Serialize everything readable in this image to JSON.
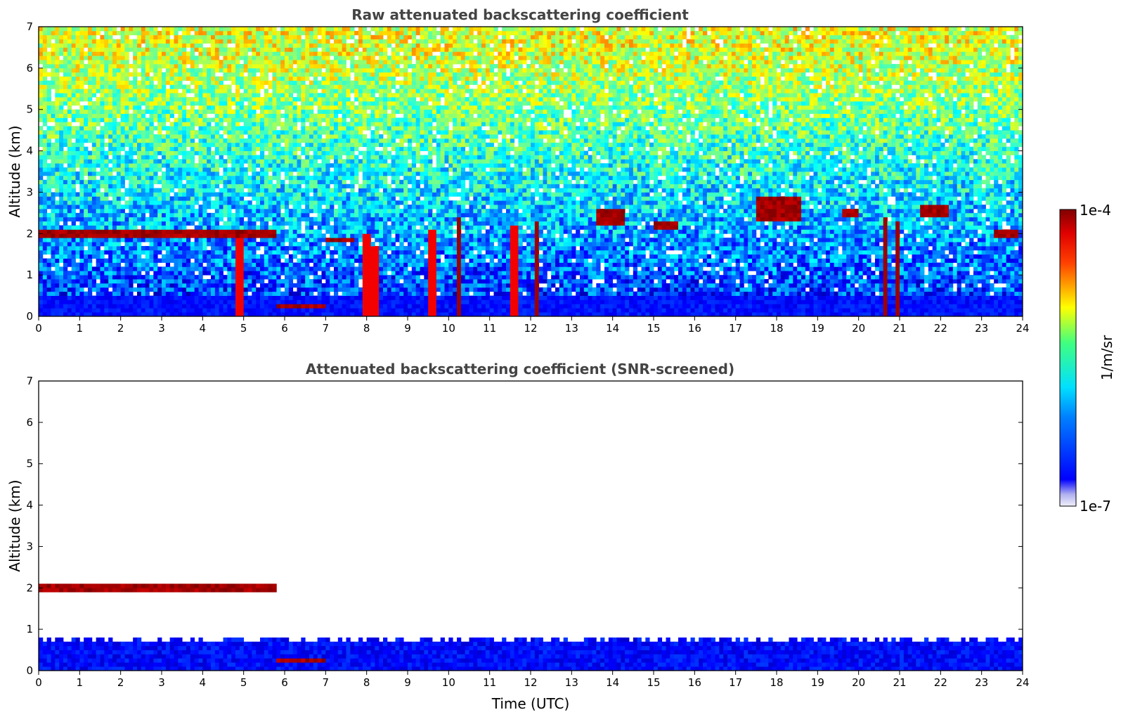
{
  "chart_data": [
    {
      "type": "heatmap",
      "title": "Raw attenuated backscattering coefficient",
      "xlabel": "",
      "ylabel": "Altitude (km)",
      "xlim": [
        0,
        24
      ],
      "ylim": [
        0,
        7
      ],
      "x_ticks": [
        "0",
        "1",
        "2",
        "3",
        "4",
        "5",
        "6",
        "7",
        "8",
        "9",
        "10",
        "11",
        "12",
        "13",
        "14",
        "15",
        "16",
        "17",
        "18",
        "19",
        "20",
        "21",
        "22",
        "23",
        "24"
      ],
      "y_ticks": [
        "0",
        "1",
        "2",
        "3",
        "4",
        "5",
        "6",
        "7"
      ],
      "screened": false,
      "features": [
        {
          "kind": "cloud-layer",
          "t_start": 0.0,
          "t_end": 5.8,
          "altitude_km": [
            1.93,
            2.1
          ]
        },
        {
          "kind": "cloud-layer",
          "t_start": 5.8,
          "t_end": 7.0,
          "altitude_km": [
            0.2,
            0.32
          ]
        },
        {
          "kind": "cloud-layer",
          "t_start": 7.0,
          "t_end": 7.7,
          "altitude_km": [
            1.8,
            1.95
          ]
        },
        {
          "kind": "convective-column",
          "t_center": 4.9,
          "altitude_km": [
            0.0,
            2.1
          ]
        },
        {
          "kind": "convective-column",
          "t_center": 8.0,
          "altitude_km": [
            0.0,
            2.0
          ]
        },
        {
          "kind": "convective-column",
          "t_center": 8.2,
          "altitude_km": [
            0.0,
            1.7
          ]
        },
        {
          "kind": "convective-column",
          "t_center": 9.6,
          "altitude_km": [
            0.0,
            2.1
          ]
        },
        {
          "kind": "convective-column",
          "t_center": 10.25,
          "altitude_km": [
            0.0,
            2.4
          ]
        },
        {
          "kind": "convective-column",
          "t_center": 11.6,
          "altitude_km": [
            0.0,
            2.2
          ]
        },
        {
          "kind": "convective-column",
          "t_center": 12.15,
          "altitude_km": [
            0.0,
            2.3
          ]
        },
        {
          "kind": "convective-column",
          "t_center": 20.65,
          "altitude_km": [
            0.0,
            2.4
          ]
        },
        {
          "kind": "convective-column",
          "t_center": 20.95,
          "altitude_km": [
            0.0,
            2.3
          ]
        },
        {
          "kind": "cloud-patch",
          "t_start": 13.6,
          "t_end": 14.3,
          "altitude_km": [
            2.2,
            2.6
          ]
        },
        {
          "kind": "cloud-patch",
          "t_start": 15.0,
          "t_end": 15.6,
          "altitude_km": [
            2.1,
            2.3
          ]
        },
        {
          "kind": "cloud-patch",
          "t_start": 17.5,
          "t_end": 18.6,
          "altitude_km": [
            2.3,
            2.9
          ]
        },
        {
          "kind": "cloud-patch",
          "t_start": 19.6,
          "t_end": 20.0,
          "altitude_km": [
            2.4,
            2.6
          ]
        },
        {
          "kind": "cloud-patch",
          "t_start": 21.5,
          "t_end": 22.2,
          "altitude_km": [
            2.4,
            2.7
          ]
        },
        {
          "kind": "cloud-patch",
          "t_start": 23.3,
          "t_end": 23.9,
          "altitude_km": [
            1.9,
            2.1
          ]
        }
      ]
    },
    {
      "type": "heatmap",
      "title": "Attenuated backscattering coefficient (SNR-screened)",
      "xlabel": "Time (UTC)",
      "ylabel": "Altitude (km)",
      "xlim": [
        0,
        24
      ],
      "ylim": [
        0,
        7
      ],
      "x_ticks": [
        "0",
        "1",
        "2",
        "3",
        "4",
        "5",
        "6",
        "7",
        "8",
        "9",
        "10",
        "11",
        "12",
        "13",
        "14",
        "15",
        "16",
        "17",
        "18",
        "19",
        "20",
        "21",
        "22",
        "23",
        "24"
      ],
      "y_ticks": [
        "0",
        "1",
        "2",
        "3",
        "4",
        "5",
        "6",
        "7"
      ],
      "screened": true,
      "features": [
        {
          "kind": "cloud-layer",
          "t_start": 0.0,
          "t_end": 5.8,
          "altitude_km": [
            1.93,
            2.1
          ]
        },
        {
          "kind": "cloud-layer",
          "t_start": 5.8,
          "t_end": 7.0,
          "altitude_km": [
            0.2,
            0.32
          ]
        },
        {
          "kind": "boundary-layer",
          "t_start": 0.0,
          "t_end": 24.0,
          "altitude_km": [
            0.0,
            0.8
          ]
        }
      ]
    }
  ],
  "colorbar": {
    "label": "1/m/sr",
    "max_label": "1e-4",
    "min_label": "1e-7",
    "scale": "log",
    "range": [
      1e-07,
      0.0001
    ],
    "colormap": "jet",
    "colors": [
      "#e6e6f5",
      "#0000ff",
      "#00ffff",
      "#ffff00",
      "#ff0000",
      "#800000"
    ]
  }
}
